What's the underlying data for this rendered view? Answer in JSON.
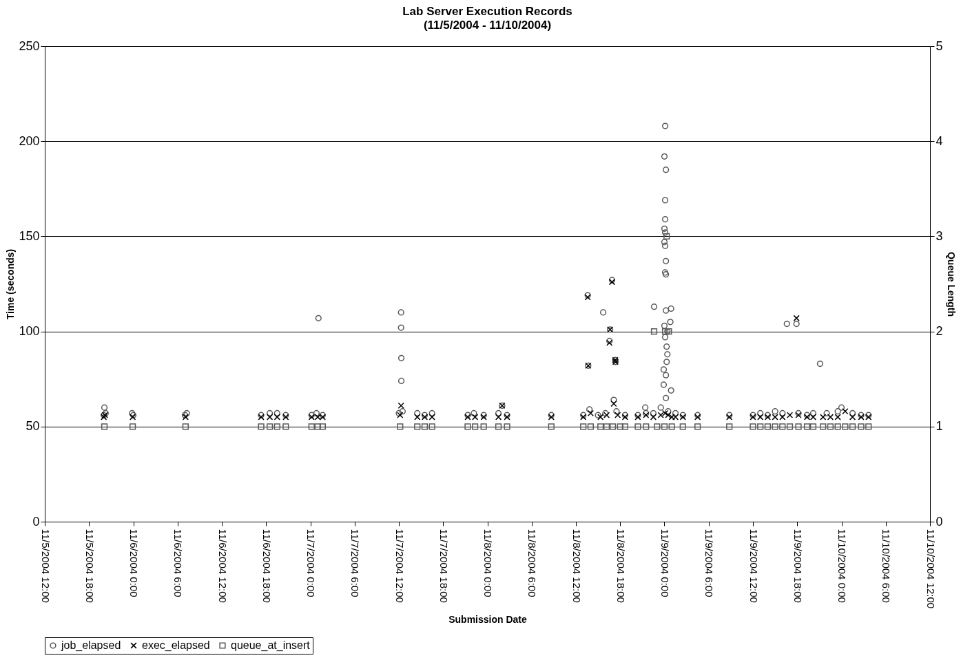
{
  "chart_data": {
    "type": "scatter",
    "title": "Lab Server Execution Records",
    "subtitle": "(11/5/2004 - 11/10/2004)",
    "xlabel": "Submission Date",
    "ylabel": "Time (seconds)",
    "y2label": "Queue Length",
    "xlim": [
      "2004-11-05T12:00",
      "2004-11-10T12:00"
    ],
    "xticks": [
      {
        "value": "2004-11-05T12:00",
        "label": "11/5/2004 12:00"
      },
      {
        "value": "2004-11-05T18:00",
        "label": "11/5/2004 18:00"
      },
      {
        "value": "2004-11-06T00:00",
        "label": "11/6/2004 0:00"
      },
      {
        "value": "2004-11-06T06:00",
        "label": "11/6/2004 6:00"
      },
      {
        "value": "2004-11-06T12:00",
        "label": "11/6/2004 12:00"
      },
      {
        "value": "2004-11-06T18:00",
        "label": "11/6/2004 18:00"
      },
      {
        "value": "2004-11-07T00:00",
        "label": "11/7/2004 0:00"
      },
      {
        "value": "2004-11-07T06:00",
        "label": "11/7/2004 6:00"
      },
      {
        "value": "2004-11-07T12:00",
        "label": "11/7/2004 12:00"
      },
      {
        "value": "2004-11-07T18:00",
        "label": "11/7/2004 18:00"
      },
      {
        "value": "2004-11-08T00:00",
        "label": "11/8/2004 0:00"
      },
      {
        "value": "2004-11-08T06:00",
        "label": "11/8/2004 6:00"
      },
      {
        "value": "2004-11-08T12:00",
        "label": "11/8/2004 12:00"
      },
      {
        "value": "2004-11-08T18:00",
        "label": "11/8/2004 18:00"
      },
      {
        "value": "2004-11-09T00:00",
        "label": "11/9/2004 0:00"
      },
      {
        "value": "2004-11-09T06:00",
        "label": "11/9/2004 6:00"
      },
      {
        "value": "2004-11-09T12:00",
        "label": "11/9/2004 12:00"
      },
      {
        "value": "2004-11-09T18:00",
        "label": "11/9/2004 18:00"
      },
      {
        "value": "2004-11-10T00:00",
        "label": "11/10/2004 0:00"
      },
      {
        "value": "2004-11-10T06:00",
        "label": "11/10/2004 6:00"
      },
      {
        "value": "2004-11-10T12:00",
        "label": "11/10/2004 12:00"
      }
    ],
    "ylim": [
      0,
      250
    ],
    "yticks": [
      0,
      50,
      100,
      150,
      200,
      250
    ],
    "y2lim": [
      0,
      5
    ],
    "y2ticks": [
      0,
      1,
      2,
      3,
      4,
      5
    ],
    "grid": "y",
    "legend": "bottom",
    "series": [
      {
        "name": "job_elapsed",
        "color": "#595959",
        "marker": "circle",
        "x": [
          "2004-11-05T20:00",
          "2004-11-05T20:05",
          "2004-11-05T20:15",
          "2004-11-05T23:50",
          "2004-11-06T00:00",
          "2004-11-06T07:00",
          "2004-11-06T07:15",
          "2004-11-06T17:20",
          "2004-11-06T18:30",
          "2004-11-06T19:30",
          "2004-11-06T20:40",
          "2004-11-07T00:10",
          "2004-11-07T00:50",
          "2004-11-07T01:06",
          "2004-11-07T01:40",
          "2004-11-07T12:00",
          "2004-11-07T12:18",
          "2004-11-07T12:18",
          "2004-11-07T12:20",
          "2004-11-07T12:20",
          "2004-11-07T12:30",
          "2004-11-07T14:30",
          "2004-11-07T15:30",
          "2004-11-07T16:30",
          "2004-11-07T21:20",
          "2004-11-07T22:10",
          "2004-11-07T23:30",
          "2004-11-08T01:30",
          "2004-11-08T02:00",
          "2004-11-08T02:40",
          "2004-11-08T08:40",
          "2004-11-08T13:00",
          "2004-11-08T13:36",
          "2004-11-08T13:40",
          "2004-11-08T13:50",
          "2004-11-08T15:00",
          "2004-11-08T15:42",
          "2004-11-08T16:00",
          "2004-11-08T16:33",
          "2004-11-08T16:38",
          "2004-11-08T16:54",
          "2004-11-08T17:08",
          "2004-11-08T17:20",
          "2004-11-08T17:22",
          "2004-11-08T17:30",
          "2004-11-08T18:40",
          "2004-11-08T20:24",
          "2004-11-08T21:24",
          "2004-11-08T21:30",
          "2004-11-08T22:30",
          "2004-11-08T22:36",
          "2004-11-08T23:30",
          "2004-11-08T23:54",
          "2004-11-08T23:54",
          "2004-11-09T00:00",
          "2004-11-09T00:00",
          "2004-11-09T00:00",
          "2004-11-09T00:00",
          "2004-11-09T00:06",
          "2004-11-09T00:06",
          "2004-11-09T00:06",
          "2004-11-09T00:06",
          "2004-11-09T00:06",
          "2004-11-09T00:06",
          "2004-11-09T00:06",
          "2004-11-09T00:12",
          "2004-11-09T00:12",
          "2004-11-09T00:12",
          "2004-11-09T00:12",
          "2004-11-09T00:12",
          "2004-11-09T00:12",
          "2004-11-09T00:18",
          "2004-11-09T00:18",
          "2004-11-09T00:24",
          "2004-11-09T00:24",
          "2004-11-09T00:30",
          "2004-11-09T00:48",
          "2004-11-09T00:54",
          "2004-11-09T00:54",
          "2004-11-09T01:30",
          "2004-11-09T02:30",
          "2004-11-09T04:30",
          "2004-11-09T08:48",
          "2004-11-09T12:00",
          "2004-11-09T13:00",
          "2004-11-09T14:00",
          "2004-11-09T15:00",
          "2004-11-09T16:00",
          "2004-11-09T16:36",
          "2004-11-09T17:54",
          "2004-11-09T18:10",
          "2004-11-09T19:20",
          "2004-11-09T20:10",
          "2004-11-09T21:06",
          "2004-11-09T22:00",
          "2004-11-09T23:30",
          "2004-11-10T00:00",
          "2004-11-10T01:30",
          "2004-11-10T02:40",
          "2004-11-10T03:40"
        ],
        "values": [
          56,
          60,
          57,
          57,
          56,
          56,
          57,
          56,
          57,
          57,
          56,
          56,
          57,
          107,
          56,
          57,
          110,
          102,
          86,
          74,
          58,
          57,
          56,
          57,
          56,
          57,
          56,
          57,
          61,
          56,
          56,
          56,
          119,
          82,
          59,
          56,
          110,
          57,
          95,
          101,
          127,
          64,
          85,
          84,
          58,
          56,
          56,
          60,
          57,
          57,
          113,
          60,
          72,
          80,
          192,
          154,
          147,
          103,
          208,
          169,
          159,
          152,
          145,
          131,
          97,
          185,
          137,
          130,
          111,
          77,
          65,
          92,
          84,
          100,
          88,
          58,
          105,
          112,
          69,
          57,
          56,
          56,
          56,
          56,
          57,
          56,
          58,
          57,
          104,
          104,
          57,
          56,
          57,
          83,
          57,
          58,
          60,
          57,
          56,
          56
        ]
      },
      {
        "name": "exec_elapsed",
        "color": "#000000",
        "marker": "cross",
        "x": [
          "2004-11-05T20:00",
          "2004-11-05T20:10",
          "2004-11-05T23:55",
          "2004-11-06T07:05",
          "2004-11-06T17:20",
          "2004-11-06T18:30",
          "2004-11-06T19:30",
          "2004-11-06T20:40",
          "2004-11-07T00:10",
          "2004-11-07T01:00",
          "2004-11-07T01:40",
          "2004-11-07T12:10",
          "2004-11-07T12:18",
          "2004-11-07T14:30",
          "2004-11-07T15:30",
          "2004-11-07T16:30",
          "2004-11-07T21:20",
          "2004-11-07T22:20",
          "2004-11-07T23:30",
          "2004-11-08T01:30",
          "2004-11-08T02:00",
          "2004-11-08T02:40",
          "2004-11-08T08:40",
          "2004-11-08T13:00",
          "2004-11-08T13:36",
          "2004-11-08T13:40",
          "2004-11-08T14:00",
          "2004-11-08T15:20",
          "2004-11-08T16:10",
          "2004-11-08T16:33",
          "2004-11-08T16:38",
          "2004-11-08T16:54",
          "2004-11-08T17:08",
          "2004-11-08T17:20",
          "2004-11-08T17:22",
          "2004-11-08T17:40",
          "2004-11-08T18:40",
          "2004-11-08T20:24",
          "2004-11-08T21:30",
          "2004-11-08T22:30",
          "2004-11-08T23:30",
          "2004-11-09T00:06",
          "2004-11-09T00:30",
          "2004-11-09T01:00",
          "2004-11-09T01:30",
          "2004-11-09T02:30",
          "2004-11-09T04:30",
          "2004-11-09T08:48",
          "2004-11-09T12:00",
          "2004-11-09T13:00",
          "2004-11-09T14:00",
          "2004-11-09T15:00",
          "2004-11-09T16:00",
          "2004-11-09T17:00",
          "2004-11-09T17:54",
          "2004-11-09T18:10",
          "2004-11-09T19:20",
          "2004-11-09T20:10",
          "2004-11-09T21:30",
          "2004-11-09T22:30",
          "2004-11-09T23:30",
          "2004-11-10T00:30",
          "2004-11-10T01:30",
          "2004-11-10T02:40",
          "2004-11-10T03:40"
        ],
        "values": [
          55,
          56,
          55,
          55,
          55,
          55,
          55,
          55,
          55,
          55,
          55,
          56,
          61,
          55,
          55,
          55,
          55,
          55,
          55,
          55,
          61,
          55,
          55,
          55,
          118,
          82,
          57,
          55,
          56,
          94,
          101,
          126,
          62,
          85,
          84,
          56,
          55,
          55,
          56,
          55,
          56,
          57,
          56,
          55,
          55,
          55,
          55,
          55,
          55,
          55,
          55,
          55,
          55,
          56,
          107,
          56,
          55,
          55,
          55,
          55,
          55,
          58,
          55,
          55,
          55
        ]
      },
      {
        "name": "queue_at_insert",
        "color": "#595959",
        "marker": "square",
        "axis": "y2",
        "x": [
          "2004-11-05T20:05",
          "2004-11-05T23:55",
          "2004-11-06T07:05",
          "2004-11-06T17:20",
          "2004-11-06T18:30",
          "2004-11-06T19:30",
          "2004-11-06T20:40",
          "2004-11-07T00:10",
          "2004-11-07T01:00",
          "2004-11-07T01:40",
          "2004-11-07T12:10",
          "2004-11-07T14:30",
          "2004-11-07T15:30",
          "2004-11-07T16:30",
          "2004-11-07T21:20",
          "2004-11-07T22:20",
          "2004-11-07T23:30",
          "2004-11-08T01:30",
          "2004-11-08T02:40",
          "2004-11-08T08:40",
          "2004-11-08T13:00",
          "2004-11-08T14:00",
          "2004-11-08T15:20",
          "2004-11-08T16:10",
          "2004-11-08T17:00",
          "2004-11-08T18:00",
          "2004-11-08T18:40",
          "2004-11-08T20:24",
          "2004-11-08T21:30",
          "2004-11-08T22:36",
          "2004-11-08T23:00",
          "2004-11-09T00:00",
          "2004-11-09T00:06",
          "2004-11-09T00:18",
          "2004-11-09T00:36",
          "2004-11-09T01:00",
          "2004-11-09T02:30",
          "2004-11-09T04:30",
          "2004-11-09T08:48",
          "2004-11-09T12:00",
          "2004-11-09T13:00",
          "2004-11-09T14:00",
          "2004-11-09T15:00",
          "2004-11-09T16:00",
          "2004-11-09T17:00",
          "2004-11-09T18:10",
          "2004-11-09T19:20",
          "2004-11-09T20:10",
          "2004-11-09T21:30",
          "2004-11-09T22:30",
          "2004-11-09T23:30",
          "2004-11-10T00:30",
          "2004-11-10T01:30",
          "2004-11-10T02:40",
          "2004-11-10T03:40"
        ],
        "values": [
          1,
          1,
          1,
          1,
          1,
          1,
          1,
          1,
          1,
          1,
          1,
          1,
          1,
          1,
          1,
          1,
          1,
          1,
          1,
          1,
          1,
          1,
          1,
          1,
          1,
          1,
          1,
          1,
          1,
          2,
          1,
          1,
          2,
          3,
          2,
          1,
          1,
          1,
          1,
          1,
          1,
          1,
          1,
          1,
          1,
          1,
          1,
          1,
          1,
          1,
          1,
          1,
          1,
          1,
          1
        ]
      }
    ]
  }
}
